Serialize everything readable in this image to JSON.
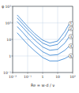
{
  "chart_data": {
    "type": "line",
    "y_label": "φ",
    "x_label": "Re = w·d / ν",
    "x": [
      0.02,
      0.05,
      0.1,
      0.3,
      1,
      3,
      10,
      30,
      60
    ],
    "series": [
      {
        "name": "1",
        "color": "#2f7fd0",
        "values": [
          300,
          120,
          60,
          22,
          9,
          6,
          8,
          30,
          90
        ]
      },
      {
        "name": "2",
        "color": "#2f7fd0",
        "values": [
          200,
          80,
          40,
          15,
          6,
          4,
          5,
          15,
          45
        ]
      },
      {
        "name": "3",
        "color": "#2f7fd0",
        "values": [
          120,
          50,
          25,
          9,
          3.5,
          2.2,
          2.5,
          6,
          15
        ]
      },
      {
        "name": "4",
        "color": "#2f7fd0",
        "values": [
          60,
          25,
          12,
          4.5,
          1.8,
          1.1,
          1.2,
          2.2,
          4
        ]
      },
      {
        "name": "5",
        "color": "#2f7fd0",
        "values": [
          25,
          10,
          5,
          2,
          0.8,
          0.5,
          0.5,
          0.7,
          1
        ]
      }
    ],
    "xlim": [
      0.01,
      100
    ],
    "ylim": [
      0.1,
      1000
    ],
    "xticks": [
      {
        "value": 0.01,
        "label": "10⁻²"
      },
      {
        "value": 0.1,
        "label": "10⁻¹"
      },
      1,
      10,
      {
        "value": 100,
        "label": "10²"
      }
    ],
    "yticks": [
      {
        "value": 0.1,
        "label": "10⁻¹"
      },
      1,
      10,
      {
        "value": 100,
        "label": "10²"
      },
      {
        "value": 1000,
        "label": "10³"
      }
    ],
    "log": true,
    "grid": true
  }
}
